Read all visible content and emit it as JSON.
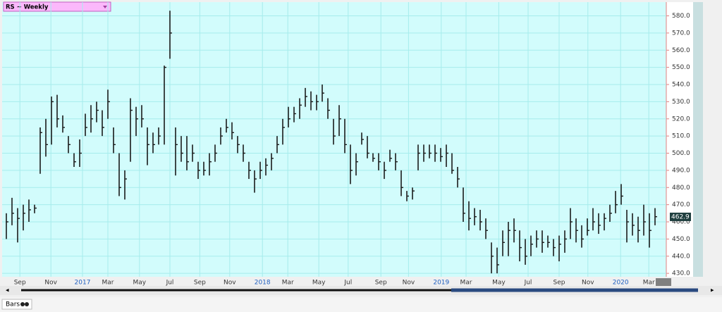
{
  "chart_data": {
    "type": "ohlc",
    "title": "RS ~ Weekly",
    "footer": "Bars",
    "last_value": 462.9,
    "high": [
      465,
      474,
      468,
      470,
      473,
      470,
      515,
      520,
      533,
      534,
      522,
      510,
      500,
      508,
      523,
      528,
      530,
      525,
      537,
      515,
      500,
      490,
      532,
      527,
      528,
      515,
      512,
      515,
      551,
      583,
      515,
      510,
      510,
      505,
      495,
      495,
      500,
      505,
      515,
      520,
      518,
      510,
      505,
      495,
      490,
      495,
      497,
      500,
      510,
      520,
      527,
      527,
      532,
      538,
      536,
      534,
      540,
      532,
      520,
      528,
      520,
      505,
      500,
      512,
      510,
      500,
      500,
      495,
      502,
      500,
      490,
      478,
      480,
      505,
      505,
      505,
      505,
      503,
      505,
      500,
      492,
      480,
      472,
      468,
      467,
      462,
      448,
      445,
      455,
      460,
      462,
      455,
      450,
      452,
      455,
      455,
      452,
      450,
      452,
      455,
      468,
      462,
      458,
      462,
      468,
      465,
      465,
      470,
      478,
      482,
      467,
      465,
      463,
      470,
      465,
      468
    ],
    "low": [
      450,
      458,
      448,
      455,
      460,
      465,
      488,
      498,
      505,
      515,
      512,
      500,
      492,
      492,
      510,
      512,
      518,
      510,
      520,
      500,
      475,
      473,
      495,
      510,
      515,
      493,
      500,
      505,
      505,
      555,
      487,
      495,
      490,
      495,
      485,
      487,
      487,
      495,
      505,
      512,
      508,
      500,
      495,
      485,
      477,
      485,
      487,
      490,
      500,
      505,
      515,
      518,
      520,
      527,
      525,
      525,
      530,
      520,
      505,
      510,
      500,
      482,
      487,
      505,
      497,
      495,
      490,
      485,
      495,
      490,
      475,
      472,
      473,
      490,
      495,
      497,
      495,
      495,
      492,
      488,
      480,
      460,
      455,
      458,
      455,
      450,
      430,
      430,
      440,
      440,
      448,
      437,
      435,
      440,
      445,
      442,
      445,
      440,
      437,
      442,
      450,
      448,
      445,
      452,
      455,
      453,
      455,
      460,
      465,
      470,
      448,
      452,
      448,
      452,
      445,
      458
    ],
    "close": [
      460,
      465,
      462,
      465,
      467,
      468,
      512,
      505,
      530,
      520,
      515,
      505,
      495,
      500,
      515,
      520,
      525,
      515,
      530,
      505,
      480,
      485,
      525,
      520,
      520,
      505,
      505,
      510,
      550,
      570,
      505,
      500,
      495,
      500,
      490,
      490,
      495,
      500,
      510,
      515,
      512,
      505,
      500,
      490,
      485,
      490,
      493,
      497,
      505,
      515,
      520,
      523,
      528,
      533,
      530,
      530,
      535,
      525,
      510,
      520,
      505,
      490,
      495,
      508,
      500,
      497,
      495,
      490,
      497,
      495,
      480,
      475,
      478,
      500,
      500,
      500,
      500,
      498,
      500,
      490,
      485,
      465,
      462,
      463,
      460,
      455,
      440,
      435,
      448,
      455,
      455,
      445,
      440,
      447,
      450,
      448,
      448,
      445,
      447,
      450,
      460,
      455,
      450,
      455,
      460,
      458,
      462,
      465,
      470,
      475,
      460,
      458,
      455,
      460,
      455,
      463
    ],
    "xlim": [
      -0.5,
      117
    ],
    "xticks": [
      {
        "value": 2.4,
        "label": "Sep"
      },
      {
        "value": 7.9,
        "label": "Nov"
      },
      {
        "value": 13.5,
        "label": "2017"
      },
      {
        "value": 18,
        "label": "Mar"
      },
      {
        "value": 23.6,
        "label": "May"
      },
      {
        "value": 29,
        "label": "Jul"
      },
      {
        "value": 34.3,
        "label": "Sep"
      },
      {
        "value": 39.6,
        "label": "Nov"
      },
      {
        "value": 45.4,
        "label": "2018"
      },
      {
        "value": 49.9,
        "label": "Mar"
      },
      {
        "value": 55.4,
        "label": "May"
      },
      {
        "value": 60.6,
        "label": "Jul"
      },
      {
        "value": 66.4,
        "label": "Sep"
      },
      {
        "value": 71.3,
        "label": "Nov"
      },
      {
        "value": 77.1,
        "label": "2019"
      },
      {
        "value": 81.5,
        "label": "Mar"
      },
      {
        "value": 87.3,
        "label": "May"
      },
      {
        "value": 92.5,
        "label": "Jul"
      },
      {
        "value": 98,
        "label": "Sep"
      },
      {
        "value": 103.1,
        "label": "Nov"
      },
      {
        "value": 108.9,
        "label": "2020"
      },
      {
        "value": 113.9,
        "label": "Mar"
      }
    ],
    "ylim": [
      428,
      588
    ],
    "yticks": [
      {
        "value": 430,
        "label": "430.0"
      },
      {
        "value": 440,
        "label": "440.0"
      },
      {
        "value": 450,
        "label": "450.0"
      },
      {
        "value": 460,
        "label": "460.0"
      },
      {
        "value": 470,
        "label": "470.0"
      },
      {
        "value": 480,
        "label": "480.0"
      },
      {
        "value": 490,
        "label": "490.0"
      },
      {
        "value": 500,
        "label": "500.0"
      },
      {
        "value": 510,
        "label": "510.0"
      },
      {
        "value": 520,
        "label": "520.0"
      },
      {
        "value": 530,
        "label": "530.0"
      },
      {
        "value": 540,
        "label": "540.0"
      },
      {
        "value": 550,
        "label": "550.0"
      },
      {
        "value": 560,
        "label": "560.0"
      },
      {
        "value": 570,
        "label": "570.0"
      },
      {
        "value": 580,
        "label": "580.0"
      }
    ],
    "grid": true,
    "color": "#1a1a1a"
  }
}
